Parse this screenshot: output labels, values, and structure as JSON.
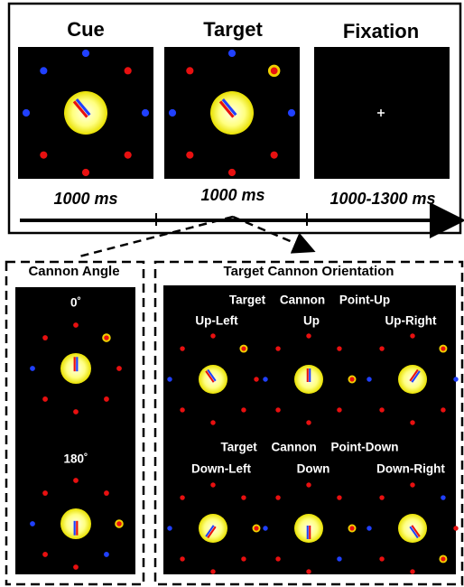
{
  "top": {
    "stages": [
      {
        "label": "Cue",
        "duration": "1000 ms"
      },
      {
        "label": "Target",
        "duration": "1000 ms"
      },
      {
        "label": "Fixation",
        "duration": "1000-1300 ms"
      }
    ]
  },
  "cannon_angle": {
    "title": "Cannon Angle",
    "angles": [
      "0˚",
      "180˚"
    ]
  },
  "orientation": {
    "title": "Target Cannon Orientation",
    "rows": [
      {
        "heading": "Target Cannon Point-Up",
        "labels": [
          "Up-Left",
          "Up",
          "Up-Right"
        ]
      },
      {
        "heading": "Target Cannon Point-Down",
        "labels": [
          "Down-Left",
          "Down",
          "Down-Right"
        ]
      }
    ]
  }
}
